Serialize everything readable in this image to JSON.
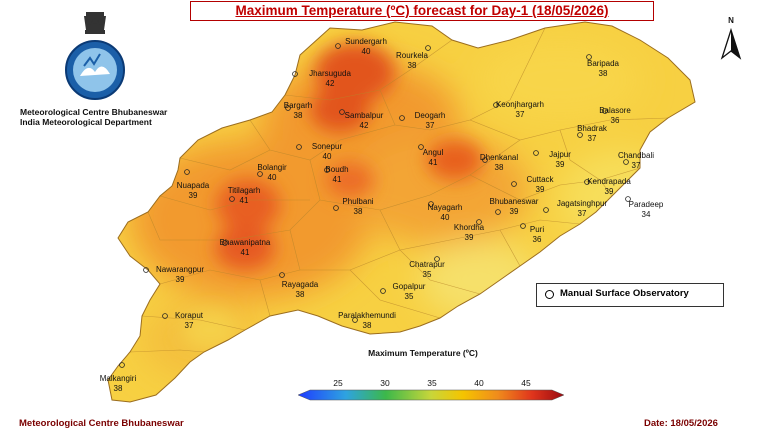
{
  "title": "Maximum Temperature (ºC) forecast for Day-1 (18/05/2026)",
  "org": {
    "line1": "Meteorological Centre Bhubaneswar",
    "line2": "India Meteorological Department"
  },
  "footer": {
    "left": "Meteorological Centre Bhubaneswar",
    "right": "Date: 18/05/2026"
  },
  "legend": {
    "marker_label": "Manual Surface Observatory"
  },
  "north_label": "N",
  "colorbar": {
    "title": "Maximum Temperature (ºC)",
    "ticks": [
      "25",
      "30",
      "35",
      "40",
      "45"
    ],
    "colors": [
      "#1e3cff",
      "#2ea3e0",
      "#3cb84a",
      "#c8d63a",
      "#f5c400",
      "#f08c1c",
      "#e0351c",
      "#9a0a10"
    ]
  },
  "stations": [
    {
      "name": "Sundergarh",
      "temp": "40"
    },
    {
      "name": "Rourkela",
      "temp": "38"
    },
    {
      "name": "Jharsuguda",
      "temp": "42"
    },
    {
      "name": "Baripada",
      "temp": "38"
    },
    {
      "name": "Keonjhargarh",
      "temp": "37"
    },
    {
      "name": "Balasore",
      "temp": "36"
    },
    {
      "name": "Bargarh",
      "temp": "38"
    },
    {
      "name": "Sambalpur",
      "temp": "42"
    },
    {
      "name": "Deogarh",
      "temp": "37"
    },
    {
      "name": "Bhadrak",
      "temp": "37"
    },
    {
      "name": "Chandbali",
      "temp": "37"
    },
    {
      "name": "Sonepur",
      "temp": "40"
    },
    {
      "name": "Angul",
      "temp": "41"
    },
    {
      "name": "Dhenkanal",
      "temp": "38"
    },
    {
      "name": "Jajpur",
      "temp": "39"
    },
    {
      "name": "Bolangir",
      "temp": "40"
    },
    {
      "name": "Boudh",
      "temp": "41"
    },
    {
      "name": "Cuttack",
      "temp": "39"
    },
    {
      "name": "Kendrapada",
      "temp": "39"
    },
    {
      "name": "Nuapada",
      "temp": "39"
    },
    {
      "name": "Titilagarh",
      "temp": "41"
    },
    {
      "name": "Phulbani",
      "temp": "38"
    },
    {
      "name": "Nayagarh",
      "temp": "40"
    },
    {
      "name": "Bhubaneswar",
      "temp": "39"
    },
    {
      "name": "Jagatsinghpur",
      "temp": "37"
    },
    {
      "name": "Paradeep",
      "temp": "34"
    },
    {
      "name": "Khordha",
      "temp": "39"
    },
    {
      "name": "Puri",
      "temp": "36"
    },
    {
      "name": "Bhawanipatna",
      "temp": "41"
    },
    {
      "name": "Nawarangpur",
      "temp": "39"
    },
    {
      "name": "Chatrapur",
      "temp": "35"
    },
    {
      "name": "Rayagada",
      "temp": "38"
    },
    {
      "name": "Gopalpur",
      "temp": "35"
    },
    {
      "name": "Koraput",
      "temp": "37"
    },
    {
      "name": "Paralakhemundi",
      "temp": "38"
    },
    {
      "name": "Malkangiri",
      "temp": "38"
    }
  ]
}
